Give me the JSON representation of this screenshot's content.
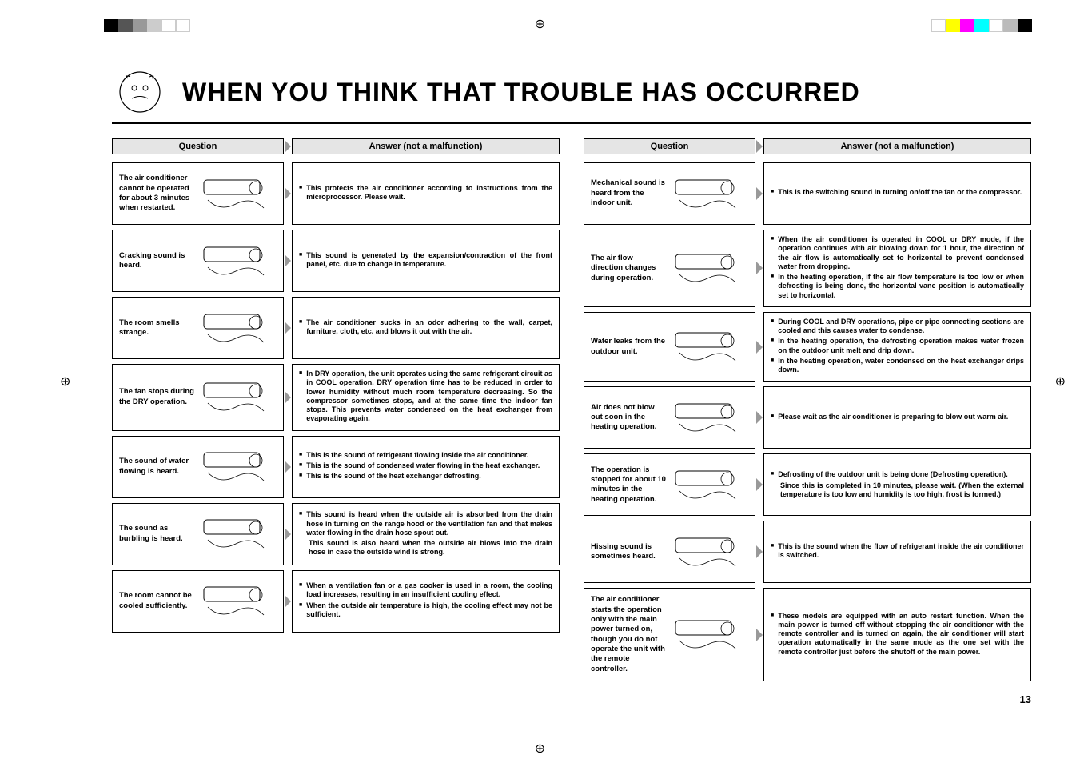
{
  "page": {
    "title": "WHEN YOU THINK THAT TROUBLE HAS OCCURRED",
    "page_number": "13"
  },
  "headers": {
    "question": "Question",
    "answer": "Answer (not a malfunction)"
  },
  "colors": {
    "bar_black": "#000000",
    "bar_gray1": "#555555",
    "bar_gray2": "#999999",
    "bar_gray3": "#cccccc",
    "bar_yellow": "#ffff00",
    "bar_magenta": "#ff00ff",
    "bar_cyan": "#00ffff",
    "bar_lgray": "#bbbbbb"
  },
  "left_rows": [
    {
      "q": "The air conditioner cannot be operated for about 3 minutes when restarted.",
      "a": [
        "<b>This protects the air conditioner according to instructions from the microprocessor. Please wait.</b>"
      ]
    },
    {
      "q": "Cracking sound is heard.",
      "a": [
        "<b>This sound is generated by the expansion/contraction of the front panel, etc. due to change in temperature.</b>"
      ]
    },
    {
      "q": "The room smells strange.",
      "a": [
        "<b>The air conditioner sucks in an odor adhering to the wall, carpet, furniture, cloth, etc. and blows it out with the air.</b>"
      ]
    },
    {
      "q": "The fan stops during the DRY operation.",
      "a": [
        "<b>In DRY operation, the unit operates using the same refrigerant circuit as in COOL operation. DRY operation time has to be reduced in order to lower humidity without much room temperature decreasing. So the compressor sometimes stops, and at the same time the indoor fan stops. This prevents water condensed on the heat exchanger from evaporating again.</b>"
      ]
    },
    {
      "q": "The sound of water flowing is heard.",
      "a": [
        "<b>This is the sound of refrigerant flowing inside the air conditioner.</b>",
        "<b>This is the sound of condensed water flowing in the heat exchanger.</b>",
        "<b>This is the sound of the heat exchanger defrosting.</b>"
      ]
    },
    {
      "q": "The sound as burbling is heard.",
      "a": [
        "<b>This sound is heard when the outside air is absorbed from the drain hose in turning on the range hood or the ventilation fan and that makes water flowing in the drain hose spout out.</b>|<b>This sound is also heard when the outside air blows into the drain hose in case the outside wind is strong.</b>"
      ]
    },
    {
      "q": "The room cannot be cooled sufficiently.",
      "a": [
        "<b>When a ventilation fan or a gas cooker is used in a room, the cooling load increases, resulting in an insufficient cooling effect.</b>",
        "<b>When the outside air temperature is high, the cooling effect may not be sufficient.</b>"
      ]
    }
  ],
  "right_rows": [
    {
      "q": "Mechanical sound is heard from the indoor unit.",
      "a": [
        "<b>This is the switching sound in turning on/off the fan or the compressor.</b>"
      ]
    },
    {
      "q": "The air flow direction changes during operation.",
      "a": [
        "<b>When the air conditioner is operated in COOL or DRY mode, if the operation continues with air blowing down for 1 hour, the direction of the air flow is automatically set to horizontal to prevent condensed water from dropping.</b>",
        "<b>In the heating operation, if the air flow temperature is too low or when defrosting is being done, the horizontal vane position is automatically set to horizontal.</b>"
      ]
    },
    {
      "q": "Water leaks from the outdoor unit.",
      "a": [
        "<b>During COOL and DRY operations, pipe or pipe connecting sections are cooled and this causes water to condense.</b>",
        "<b>In the heating operation, the defrosting operation makes water frozen on the outdoor unit melt and drip down.</b>",
        "<b>In the heating operation, water condensed on the heat exchanger drips down.</b>"
      ]
    },
    {
      "q": "Air does not blow out soon in the heating operation.",
      "a": [
        "<b>Please wait as the air conditioner is preparing to blow out warm air.</b>"
      ]
    },
    {
      "q": "The operation is stopped for about 10 minutes in the heating operation.",
      "a": [
        "<b>Defrosting of the outdoor unit is being done (Defrosting operation).</b>|<b>Since this is completed in 10 minutes, please wait. (When the external temperature is too low and humidity is too high, frost is formed.)</b>"
      ]
    },
    {
      "q": "Hissing sound is sometimes heard.",
      "a": [
        "<b>This is the sound when the flow of refrigerant inside the air conditioner is switched.</b>"
      ]
    },
    {
      "q": "The air conditioner starts the operation only with the main power turned on, though you do not operate the unit with the remote controller.",
      "a": [
        "<b>These models are equipped with an auto restart function. When the main power is turned off without stopping the air conditioner with the remote controller and is turned on again, the air conditioner will start operation automatically in the same mode as the one set with the remote controller just before the shutoff of the main power.</b>"
      ]
    }
  ]
}
